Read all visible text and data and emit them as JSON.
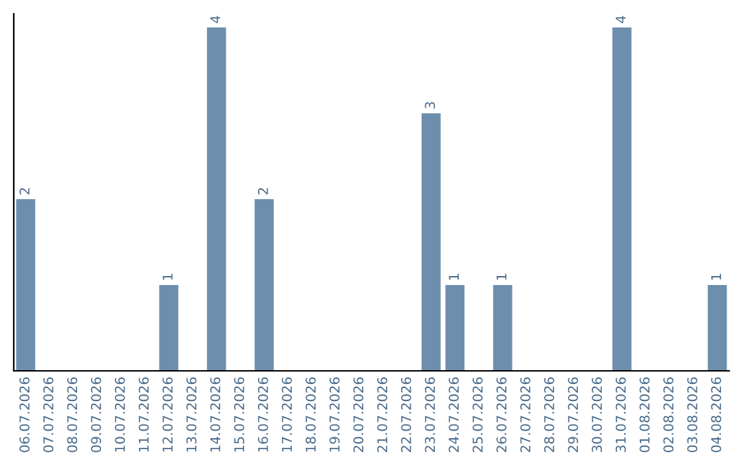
{
  "chart_data": {
    "type": "bar",
    "categories": [
      "06.07.2026",
      "07.07.2026",
      "08.07.2026",
      "09.07.2026",
      "10.07.2026",
      "11.07.2026",
      "12.07.2026",
      "13.07.2026",
      "14.07.2026",
      "15.07.2026",
      "16.07.2026",
      "17.07.2026",
      "18.07.2026",
      "19.07.2026",
      "20.07.2026",
      "21.07.2026",
      "22.07.2026",
      "23.07.2026",
      "24.07.2026",
      "25.07.2026",
      "26.07.2026",
      "27.07.2026",
      "28.07.2026",
      "29.07.2026",
      "30.07.2026",
      "31.07.2026",
      "01.08.2026",
      "02.08.2026",
      "03.08.2026",
      "04.08.2026"
    ],
    "values": [
      2,
      0,
      0,
      0,
      0,
      0,
      1,
      0,
      4,
      0,
      2,
      0,
      0,
      0,
      0,
      0,
      0,
      3,
      1,
      0,
      1,
      0,
      0,
      0,
      0,
      4,
      0,
      0,
      0,
      1
    ],
    "color": "#6d8fad",
    "value_labels": [
      "2",
      null,
      null,
      null,
      null,
      null,
      "1",
      null,
      "4",
      null,
      "2",
      null,
      null,
      null,
      null,
      null,
      null,
      "3",
      "1",
      null,
      "1",
      null,
      null,
      null,
      null,
      "4",
      null,
      null,
      null,
      "1"
    ],
    "grid": false,
    "legend": false
  }
}
